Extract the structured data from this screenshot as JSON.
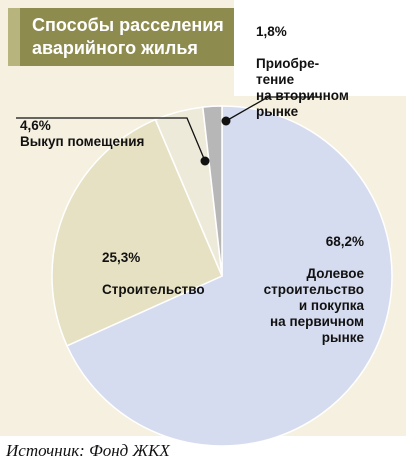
{
  "title": "Способы расселения\nаварийного жилья",
  "source": "Источник: Фонд ЖКХ",
  "chart_data": {
    "type": "pie",
    "title": "Способы расселения аварийного жилья",
    "unit": "%",
    "slices": [
      {
        "label": "Долевое\nстроительство\nи покупка\nна первичном\nрынке",
        "value": 68.2,
        "value_text": "68,2%",
        "color": "#d6dcef"
      },
      {
        "label": "Строительство",
        "value": 25.3,
        "value_text": "25,3%",
        "color": "#e6e1c3"
      },
      {
        "label": "Выкуп помещения",
        "value": 4.6,
        "value_text": "4,6%",
        "color": "#eeeada"
      },
      {
        "label": "Приобре-\nтение\nна вторичном\nрынке",
        "value": 1.8,
        "value_text": "1,8%",
        "color": "#b7b7b7"
      }
    ]
  }
}
